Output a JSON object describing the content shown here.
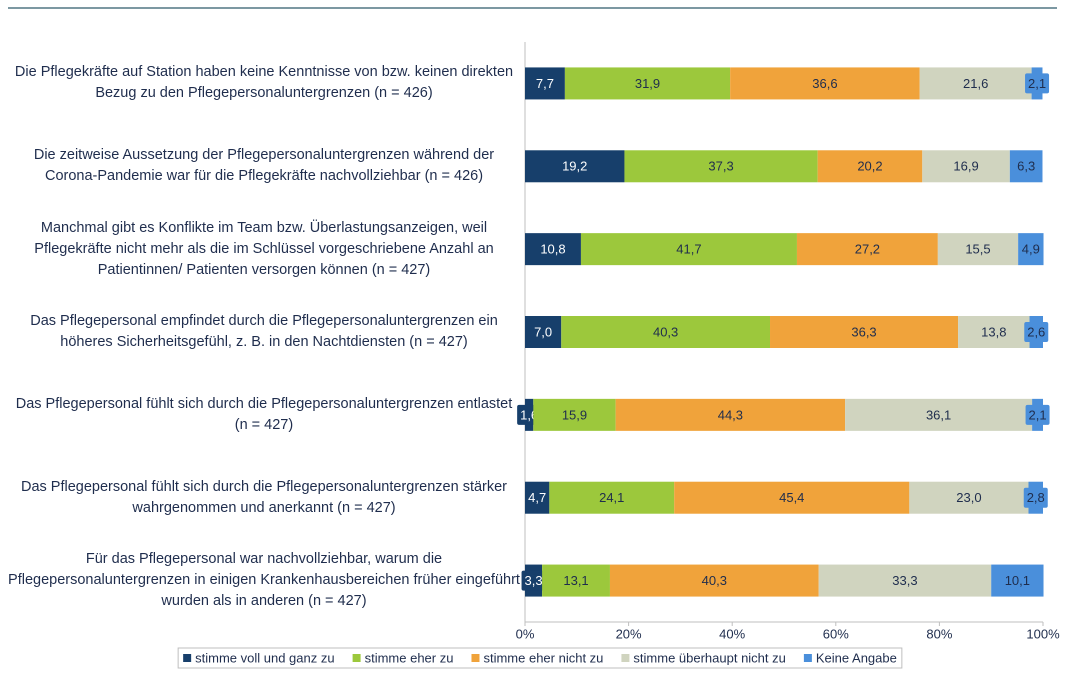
{
  "chart_data": {
    "type": "stacked_barh",
    "categories": [
      "Die Pflegekräfte auf Station haben keine Kenntnisse von bzw. keinen direkten Bezug zu den Pflegepersonaluntergrenzen (n = 426)",
      "Die zeitweise Aussetzung der Pflegepersonaluntergrenzen während der Corona-Pandemie war für die Pflegekräfte nachvollziehbar (n = 426)",
      "Manchmal gibt es Konflikte im Team bzw. Überlastungsanzeigen, weil Pflegekräfte nicht mehr als die im Schlüssel vorgeschriebene Anzahl an Patientinnen/ Patienten versorgen können (n = 427)",
      "Das Pflegepersonal empfindet durch die Pflegepersonaluntergrenzen ein höheres Sicherheitsgefühl, z. B. in den Nachtdiensten (n = 427)",
      "Das Pflegepersonal fühlt sich durch die Pflegepersonaluntergrenzen entlastet (n = 427)",
      "Das Pflegepersonal fühlt sich durch die Pflegepersonaluntergrenzen stärker wahrgenommen und anerkannt (n = 427)",
      "Für das Pflegepersonal war nachvollziehbar, warum die Pflegepersonaluntergrenzen in einigen Krankenhausbereichen früher eingeführt wurden als in anderen (n = 427)"
    ],
    "series": [
      {
        "name": "stimme voll und ganz zu",
        "color": "#173f6b",
        "values": [
          7.7,
          19.2,
          10.8,
          7.0,
          1.6,
          4.7,
          3.3
        ],
        "value_labels": [
          "7,7",
          "19,2",
          "10,8",
          "7,0",
          "1,6",
          "4,7",
          "3,3"
        ]
      },
      {
        "name": "stimme eher zu",
        "color": "#9cc83c",
        "values": [
          31.9,
          37.3,
          41.7,
          40.3,
          15.9,
          24.1,
          13.1
        ],
        "value_labels": [
          "31,9",
          "37,3",
          "41,7",
          "40,3",
          "15,9",
          "24,1",
          "13,1"
        ]
      },
      {
        "name": "stimme eher nicht zu",
        "color": "#f0a33b",
        "values": [
          36.6,
          20.2,
          27.2,
          36.3,
          44.3,
          45.4,
          40.3
        ],
        "value_labels": [
          "36,6",
          "20,2",
          "27,2",
          "36,3",
          "44,3",
          "45,4",
          "40,3"
        ]
      },
      {
        "name": "stimme überhaupt nicht zu",
        "color": "#d0d4bf",
        "values": [
          21.6,
          16.9,
          15.5,
          13.8,
          36.1,
          23.0,
          33.3
        ],
        "value_labels": [
          "21,6",
          "16,9",
          "15,5",
          "13,8",
          "36,1",
          "23,0",
          "33,3"
        ]
      },
      {
        "name": "Keine Angabe",
        "color": "#4a8fdb",
        "values": [
          2.1,
          6.3,
          4.9,
          2.6,
          2.1,
          2.8,
          10.1
        ],
        "value_labels": [
          "2,1",
          "6,3",
          "4,9",
          "2,6",
          "2,1",
          "2,8",
          "10,1"
        ]
      }
    ],
    "xlim": [
      0,
      100
    ],
    "xticks": [
      {
        "value": 0,
        "label": "0%"
      },
      {
        "value": 20,
        "label": "20%"
      },
      {
        "value": 40,
        "label": "40%"
      },
      {
        "value": 60,
        "label": "60%"
      },
      {
        "value": 80,
        "label": "80%"
      },
      {
        "value": 100,
        "label": "100%"
      }
    ],
    "legend": "bottom"
  }
}
